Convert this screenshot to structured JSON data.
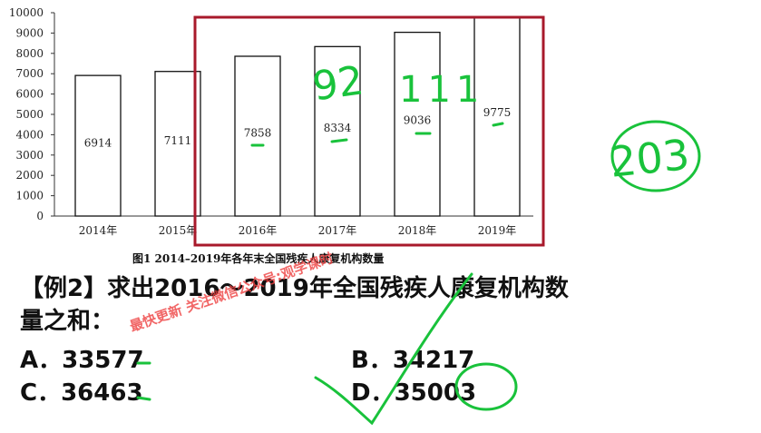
{
  "chart_data": {
    "type": "bar",
    "categories": [
      "2014年",
      "2015年",
      "2016年",
      "2017年",
      "2018年",
      "2019年"
    ],
    "values": [
      6914,
      7111,
      7858,
      8334,
      9036,
      9775
    ],
    "ylim": [
      0,
      10000
    ],
    "yticks": [
      "0",
      "1000",
      "2000",
      "3000",
      "4000",
      "5000",
      "6000",
      "7000",
      "8000",
      "9000",
      "10000"
    ],
    "caption": "图1   2014–2019年各年末全国残疾人康复机构数量",
    "bar_color": "#ffffff",
    "highlight_box_color": "#a8192b"
  },
  "question": {
    "text": "【例2】求出2016～2019年全国残疾人康复机构数量之和：",
    "options": [
      {
        "label": "A．33577"
      },
      {
        "label": "B．34217"
      },
      {
        "label": "C．36463"
      },
      {
        "label": "D．35003"
      }
    ]
  },
  "annotations": {
    "note_2017": "92",
    "note_2018": "111",
    "note_total": "203",
    "ink_color": "#19c23b"
  },
  "watermark": "最快更新 关注微信公众号:观学课时"
}
